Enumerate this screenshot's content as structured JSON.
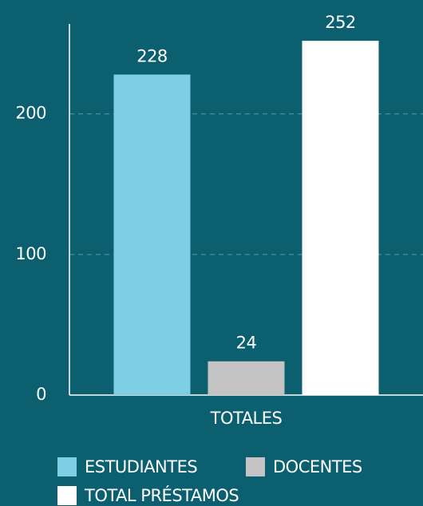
{
  "chart_data": {
    "type": "bar",
    "categories": [
      "TOTALES"
    ],
    "series": [
      {
        "name": "ESTUDIANTES",
        "color": "#7ecfe3",
        "values": [
          228
        ]
      },
      {
        "name": "DOCENTES",
        "color": "#c4c4c4",
        "values": [
          24
        ]
      },
      {
        "name": "TOTAL PRÉSTAMOS",
        "color": "#ffffff",
        "values": [
          252
        ]
      }
    ],
    "ylim": [
      0,
      264
    ],
    "yticks": [
      0,
      100,
      200
    ],
    "grid": true,
    "legend": "bottom"
  }
}
